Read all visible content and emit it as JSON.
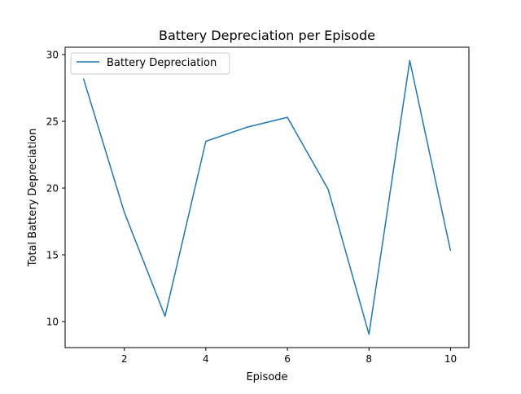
{
  "chart_data": {
    "type": "line",
    "title": "Battery Depreciation per Episode",
    "xlabel": "Episode",
    "ylabel": "Total Battery Depreciation",
    "x": [
      1,
      2,
      3,
      4,
      5,
      6,
      7,
      8,
      9,
      10
    ],
    "series": [
      {
        "name": "Battery Depreciation",
        "color": "#1f77b4",
        "values": [
          28.2,
          18.2,
          10.4,
          23.5,
          24.55,
          25.3,
          19.9,
          9.05,
          29.55,
          15.3
        ]
      }
    ],
    "xlim": [
      0.55,
      10.45
    ],
    "ylim": [
      8.05,
      30.55
    ],
    "xticks": [
      2,
      4,
      6,
      8,
      10
    ],
    "yticks": [
      10,
      15,
      20,
      25,
      30
    ],
    "grid": false,
    "legend_position": "upper-left"
  }
}
